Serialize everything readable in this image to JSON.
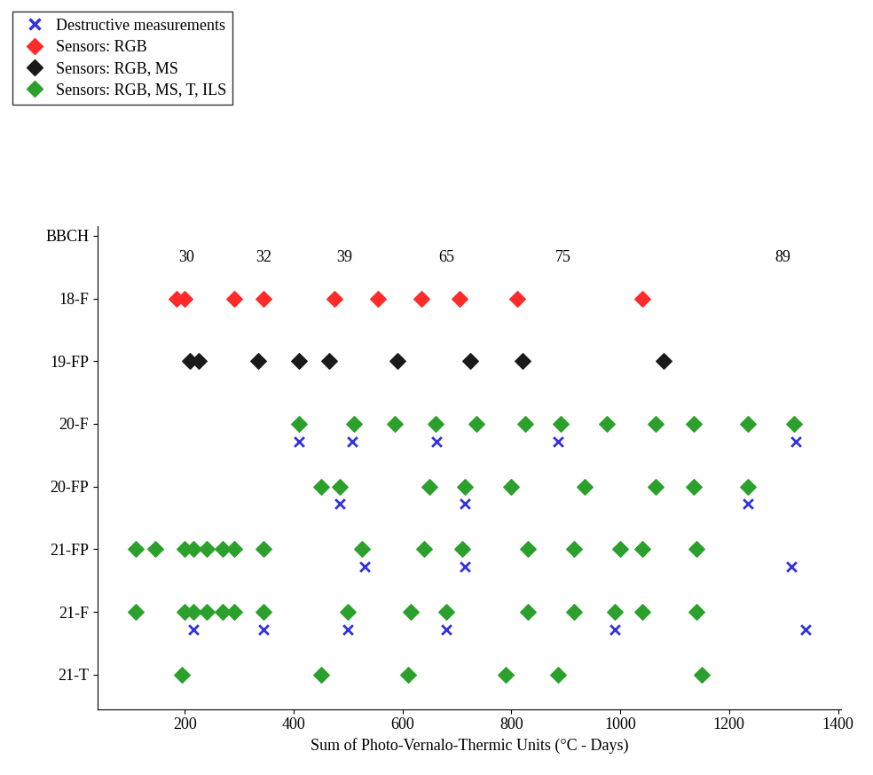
{
  "chart_data": {
    "type": "scatter",
    "x_label": "Sum of Photo-Vernalo-Thermic Units (°C - Days)",
    "categories": [
      "18-F",
      "19-FP",
      "20-F",
      "20-FP",
      "21-FP",
      "21-F",
      "21-T"
    ],
    "xlim": [
      40,
      1405
    ],
    "xticks": [
      200,
      400,
      600,
      800,
      1000,
      1200,
      1400
    ],
    "legend": "upper left",
    "stages": {
      "label": "BBCH",
      "x": [
        203,
        345,
        493,
        680,
        895,
        1298
      ],
      "values": [
        30,
        32,
        39,
        65,
        75,
        89
      ]
    },
    "series": [
      {
        "name": "Destructive measurements",
        "color": "#3333dd",
        "marker": "x",
        "values": [
          null,
          null,
          [
            410,
            507,
            662,
            886,
            1322
          ],
          [
            485,
            715,
            1235
          ],
          [
            530,
            715,
            1315
          ],
          [
            215,
            345,
            500,
            680,
            990,
            1340
          ],
          null
        ]
      },
      {
        "name": "Sensors: RGB",
        "color": "#ff2a2a",
        "marker": "D",
        "values": [
          [
            185,
            200,
            290,
            345,
            475,
            555,
            635,
            705,
            810,
            1040
          ],
          null,
          null,
          null,
          null,
          null,
          null
        ]
      },
      {
        "name": "Sensors: RGB, MS",
        "color": "#1a1a1a",
        "marker": "D",
        "values": [
          null,
          [
            210,
            225,
            335,
            410,
            465,
            590,
            725,
            820,
            1080
          ],
          null,
          null,
          null,
          null,
          null
        ]
      },
      {
        "name": "Sensors: RGB, MS, T, ILS",
        "color": "#2ca02c",
        "marker": "D",
        "values": [
          null,
          null,
          [
            410,
            510,
            585,
            660,
            735,
            825,
            890,
            975,
            1065,
            1135,
            1235,
            1320
          ],
          [
            450,
            485,
            650,
            715,
            800,
            935,
            1065,
            1135,
            1235
          ],
          [
            110,
            145,
            200,
            215,
            240,
            270,
            290,
            345,
            525,
            640,
            710,
            830,
            915,
            1000,
            1040,
            1140
          ],
          [
            110,
            200,
            215,
            240,
            270,
            290,
            345,
            500,
            615,
            680,
            830,
            915,
            990,
            1040,
            1140
          ],
          [
            195,
            450,
            610,
            790,
            885,
            1150
          ]
        ]
      }
    ]
  }
}
